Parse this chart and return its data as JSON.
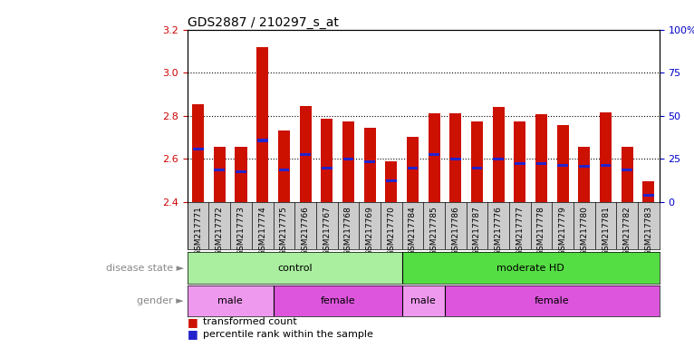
{
  "title": "GDS2887 / 210297_s_at",
  "samples": [
    "GSM217771",
    "GSM217772",
    "GSM217773",
    "GSM217774",
    "GSM217775",
    "GSM217766",
    "GSM217767",
    "GSM217768",
    "GSM217769",
    "GSM217770",
    "GSM217784",
    "GSM217785",
    "GSM217786",
    "GSM217787",
    "GSM217776",
    "GSM217777",
    "GSM217778",
    "GSM217779",
    "GSM217780",
    "GSM217781",
    "GSM217782",
    "GSM217783"
  ],
  "red_values": [
    2.855,
    2.655,
    2.655,
    3.12,
    2.73,
    2.845,
    2.785,
    2.775,
    2.745,
    2.59,
    2.7,
    2.81,
    2.81,
    2.775,
    2.84,
    2.775,
    2.805,
    2.755,
    2.655,
    2.815,
    2.655,
    2.495
  ],
  "blue_values": [
    2.645,
    2.548,
    2.538,
    2.685,
    2.548,
    2.618,
    2.558,
    2.598,
    2.585,
    2.498,
    2.558,
    2.618,
    2.598,
    2.558,
    2.598,
    2.578,
    2.578,
    2.568,
    2.565,
    2.568,
    2.548,
    2.432
  ],
  "ymin": 2.4,
  "ymax": 3.2,
  "y_left_ticks": [
    2.4,
    2.6,
    2.8,
    3.0,
    3.2
  ],
  "y_right_pcts": [
    0,
    25,
    50,
    75,
    100
  ],
  "y_right_labels": [
    "0",
    "25",
    "50",
    "75",
    "100%"
  ],
  "disease_groups": [
    {
      "label": "control",
      "start": 0,
      "end": 10,
      "color": "#AAEEA0"
    },
    {
      "label": "moderate HD",
      "start": 10,
      "end": 22,
      "color": "#55DD44"
    }
  ],
  "gender_groups": [
    {
      "label": "male",
      "start": 0,
      "end": 4,
      "color": "#EE99EE"
    },
    {
      "label": "female",
      "start": 4,
      "end": 10,
      "color": "#DD55DD"
    },
    {
      "label": "male",
      "start": 10,
      "end": 12,
      "color": "#EE99EE"
    },
    {
      "label": "female",
      "start": 12,
      "end": 22,
      "color": "#DD55DD"
    }
  ],
  "bar_color": "#CC1100",
  "blue_color": "#2222CC",
  "bar_width": 0.55,
  "tick_bg_color": "#CCCCCC",
  "left_label_color": "#888888"
}
